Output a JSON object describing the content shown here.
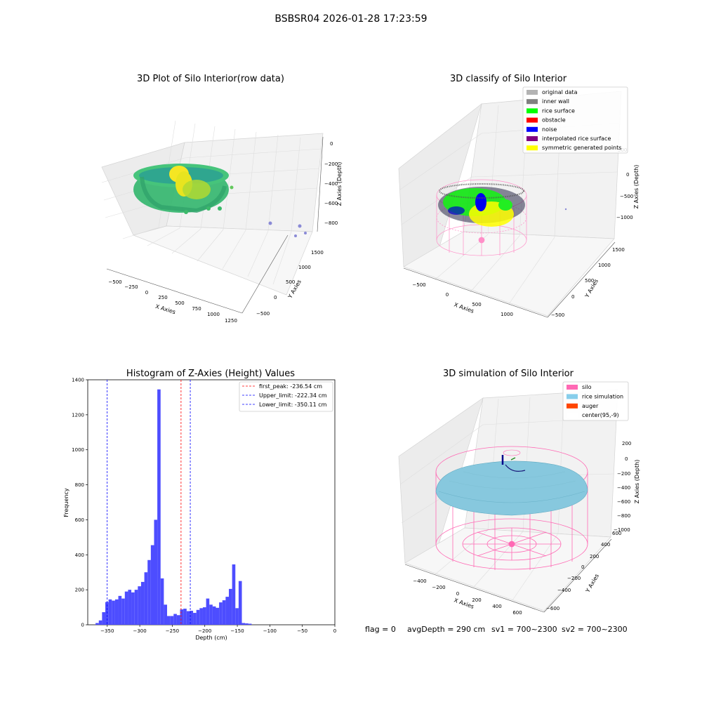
{
  "figure_title": "BSBSR04 2026-01-28 17:23:59",
  "footer": {
    "flag": "flag = 0",
    "avg_depth": "avgDepth = 290 cm",
    "sv1": "sv1 = 700~2300",
    "sv2": "sv2 = 700~2300"
  },
  "chart_data": [
    {
      "type": "scatter",
      "title": "3D Plot of Silo Interior(row data)",
      "xlabel": "X Axies",
      "ylabel": "Y Axies",
      "zlabel": "Z Axies (Depth)",
      "xticks": [
        "−500",
        "−250",
        "0",
        "250",
        "500",
        "750",
        "1000",
        "1250"
      ],
      "yticks": [
        "−500",
        "0",
        "500",
        "1000",
        "1500"
      ],
      "zticks": [
        "0",
        "−200",
        "−400",
        "−600",
        "−800"
      ]
    },
    {
      "type": "scatter",
      "title": "3D classify of Silo Interior",
      "xlabel": "X Axies",
      "ylabel": "Y Axies",
      "zlabel": "Z Axies (Depth)",
      "xticks": [
        "−500",
        "0",
        "500",
        "1000"
      ],
      "yticks": [
        "−500",
        "0",
        "500",
        "1000",
        "1500"
      ],
      "zticks": [
        "500",
        "0",
        "−500",
        "−1000"
      ],
      "legend_position": "top-right",
      "legend": [
        {
          "label": "original data",
          "color": "#b3b3b3"
        },
        {
          "label": "inner wall",
          "color": "#808080"
        },
        {
          "label": "rice surface",
          "color": "#00ff00"
        },
        {
          "label": "obstacle",
          "color": "#ff0000"
        },
        {
          "label": "noise",
          "color": "#0000ff"
        },
        {
          "label": "interpolated rice surface",
          "color": "#800080"
        },
        {
          "label": "symmetric generated points",
          "color": "#ffff00"
        }
      ]
    },
    {
      "type": "bar",
      "title": "Histogram of Z-Axies (Height) Values",
      "xlabel": "Depth (cm)",
      "ylabel": "Frequency",
      "xlim": [
        -380,
        0
      ],
      "ylim": [
        0,
        1400
      ],
      "xticks": [
        -350,
        -300,
        -250,
        -200,
        -150,
        -100,
        -50,
        0
      ],
      "xtick_labels": [
        "−350",
        "−300",
        "−250",
        "−200",
        "−150",
        "−100",
        "−50",
        "0"
      ],
      "yticks": [
        0,
        200,
        400,
        600,
        800,
        1000,
        1200,
        1400
      ],
      "bar_color": "#4d4dff",
      "bins": [
        {
          "x0": -368,
          "x1": -363,
          "v": 10
        },
        {
          "x0": -363,
          "x1": -358,
          "v": 25
        },
        {
          "x0": -358,
          "x1": -353,
          "v": 72
        },
        {
          "x0": -353,
          "x1": -348,
          "v": 130
        },
        {
          "x0": -348,
          "x1": -343,
          "v": 145
        },
        {
          "x0": -343,
          "x1": -338,
          "v": 138
        },
        {
          "x0": -338,
          "x1": -333,
          "v": 145
        },
        {
          "x0": -333,
          "x1": -328,
          "v": 165
        },
        {
          "x0": -328,
          "x1": -323,
          "v": 150
        },
        {
          "x0": -323,
          "x1": -318,
          "v": 190
        },
        {
          "x0": -318,
          "x1": -313,
          "v": 200
        },
        {
          "x0": -313,
          "x1": -308,
          "v": 185
        },
        {
          "x0": -308,
          "x1": -303,
          "v": 200
        },
        {
          "x0": -303,
          "x1": -298,
          "v": 220
        },
        {
          "x0": -298,
          "x1": -293,
          "v": 245
        },
        {
          "x0": -293,
          "x1": -288,
          "v": 300
        },
        {
          "x0": -288,
          "x1": -283,
          "v": 370
        },
        {
          "x0": -283,
          "x1": -278,
          "v": 455
        },
        {
          "x0": -278,
          "x1": -273,
          "v": 600
        },
        {
          "x0": -273,
          "x1": -268,
          "v": 1345
        },
        {
          "x0": -268,
          "x1": -263,
          "v": 265
        },
        {
          "x0": -263,
          "x1": -258,
          "v": 115
        },
        {
          "x0": -258,
          "x1": -253,
          "v": 50
        },
        {
          "x0": -253,
          "x1": -248,
          "v": 50
        },
        {
          "x0": -248,
          "x1": -243,
          "v": 62
        },
        {
          "x0": -243,
          "x1": -238,
          "v": 55
        },
        {
          "x0": -238,
          "x1": -233,
          "v": 88
        },
        {
          "x0": -233,
          "x1": -228,
          "v": 92
        },
        {
          "x0": -228,
          "x1": -223,
          "v": 78
        },
        {
          "x0": -223,
          "x1": -218,
          "v": 80
        },
        {
          "x0": -218,
          "x1": -213,
          "v": 68
        },
        {
          "x0": -213,
          "x1": -208,
          "v": 85
        },
        {
          "x0": -208,
          "x1": -203,
          "v": 95
        },
        {
          "x0": -203,
          "x1": -198,
          "v": 100
        },
        {
          "x0": -198,
          "x1": -193,
          "v": 150
        },
        {
          "x0": -193,
          "x1": -188,
          "v": 115
        },
        {
          "x0": -188,
          "x1": -183,
          "v": 105
        },
        {
          "x0": -183,
          "x1": -178,
          "v": 97
        },
        {
          "x0": -178,
          "x1": -173,
          "v": 128
        },
        {
          "x0": -173,
          "x1": -168,
          "v": 140
        },
        {
          "x0": -168,
          "x1": -163,
          "v": 160
        },
        {
          "x0": -163,
          "x1": -158,
          "v": 205
        },
        {
          "x0": -158,
          "x1": -153,
          "v": 345
        },
        {
          "x0": -153,
          "x1": -148,
          "v": 95
        },
        {
          "x0": -148,
          "x1": -143,
          "v": 250
        },
        {
          "x0": -143,
          "x1": -138,
          "v": 10
        },
        {
          "x0": -138,
          "x1": -133,
          "v": 8
        },
        {
          "x0": -133,
          "x1": -128,
          "v": 6
        }
      ],
      "vlines": [
        {
          "label": "first_peak: -236.54 cm",
          "x": -236.54,
          "color": "#ff0000"
        },
        {
          "label": "Upper_limit: -222.34 cm",
          "x": -222.34,
          "color": "#0000ff"
        },
        {
          "label": "Lower_limit: -350.11 cm",
          "x": -350.11,
          "color": "#0000ff"
        }
      ],
      "legend_position": "top-right"
    },
    {
      "type": "scatter",
      "title": "3D simulation of Silo Interior",
      "xlabel": "X Axies",
      "ylabel": "Y Axies",
      "zlabel": "Z Axies (Depth)",
      "xticks": [
        "−400",
        "−200",
        "0",
        "200",
        "400",
        "600"
      ],
      "yticks": [
        "−600",
        "−400",
        "−200",
        "0",
        "200",
        "400",
        "600"
      ],
      "zticks": [
        "200",
        "0",
        "−200",
        "−400",
        "−600",
        "−800",
        "−1000"
      ],
      "legend_position": "top-right",
      "legend": [
        {
          "label": "silo",
          "color": "#ff69b4"
        },
        {
          "label": "rice simulation",
          "color": "#87ceeb"
        },
        {
          "label": "auger",
          "color": "#ff4500"
        },
        {
          "label": "center(95,-9)",
          "color": "#ffffff"
        }
      ]
    }
  ]
}
